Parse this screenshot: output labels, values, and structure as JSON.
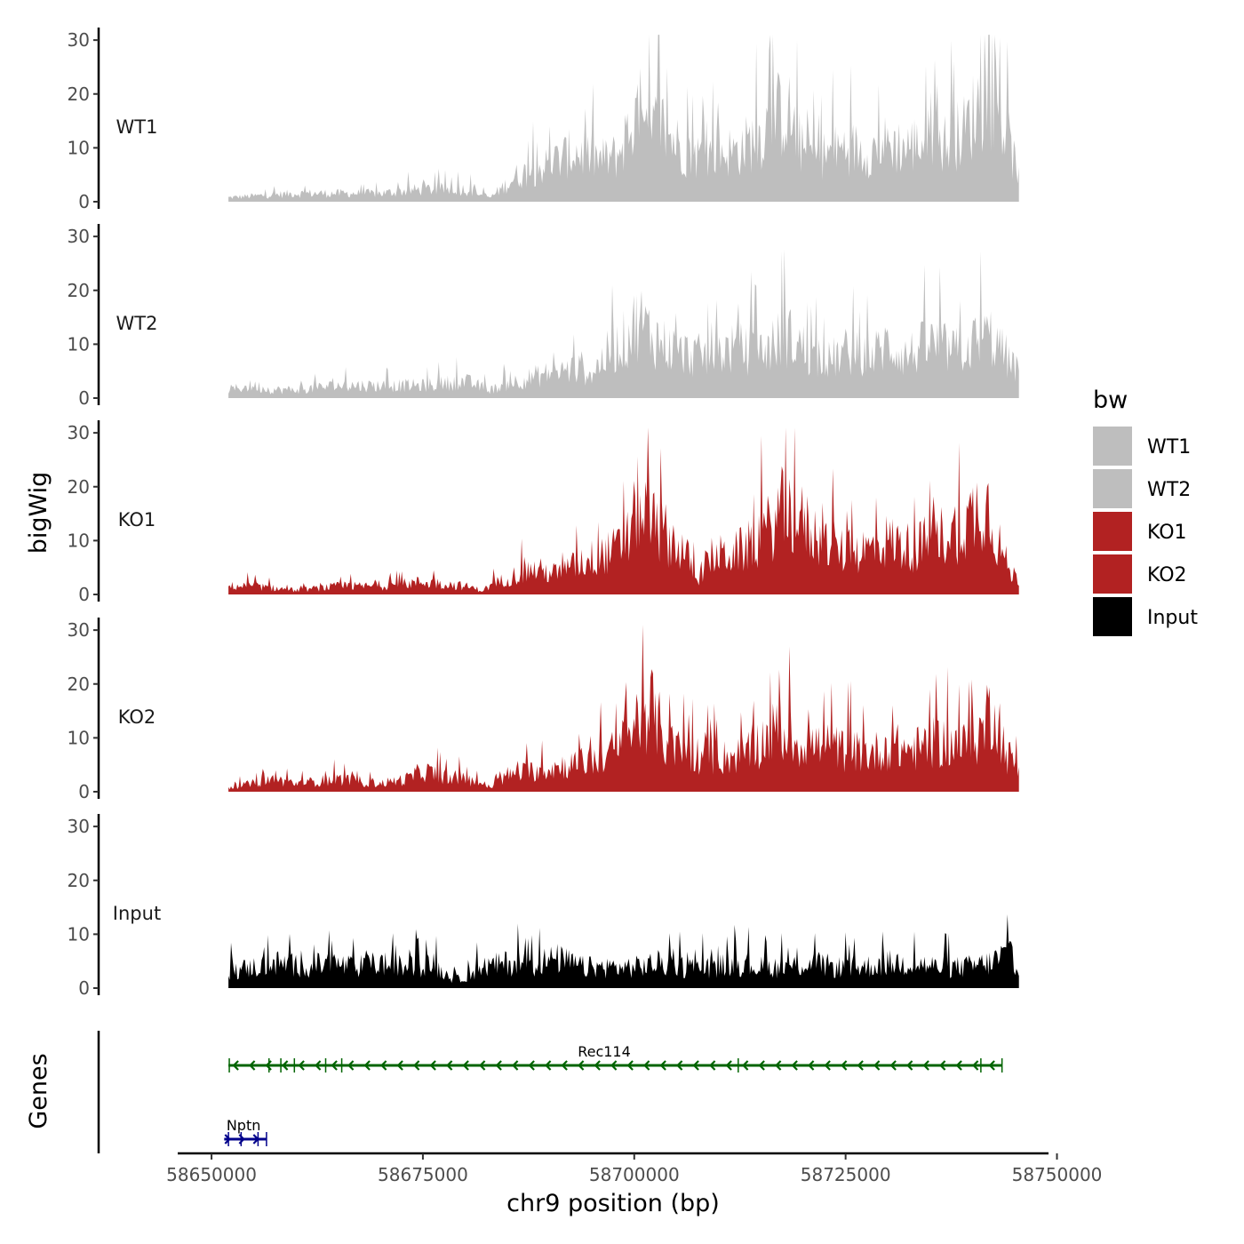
{
  "chart_data": {
    "type": "area",
    "chromosome": "chr9",
    "xlabel": "chr9 position (bp)",
    "ylabel": "bigWig",
    "genes_label": "Genes",
    "xlim": [
      58646000,
      58749000
    ],
    "data_range": [
      58652000,
      58745500
    ],
    "x_ticks": [
      58650000,
      58675000,
      58700000,
      58725000,
      58750000
    ],
    "x_tick_labels": [
      "58650000",
      "58675000",
      "58700000",
      "58725000",
      "58750000"
    ],
    "y_ticks": [
      0,
      10,
      20,
      30
    ],
    "y_tick_labels": [
      "0",
      "10",
      "20",
      "30"
    ],
    "ylim": [
      0,
      32
    ],
    "legend": {
      "title": "bw",
      "entries": [
        {
          "label": "WT1",
          "color": "#bebebe"
        },
        {
          "label": "WT2",
          "color": "#bebebe"
        },
        {
          "label": "KO1",
          "color": "#b22222"
        },
        {
          "label": "KO2",
          "color": "#b22222"
        },
        {
          "label": "Input",
          "color": "#000000"
        }
      ]
    },
    "series": [
      {
        "name": "WT1",
        "color": "#bebebe",
        "x": [
          58652000,
          58660000,
          58665000,
          58670000,
          58675000,
          58680000,
          58683000,
          58686000,
          58690000,
          58693000,
          58696000,
          58698000,
          58700000,
          58701500,
          58703000,
          58705000,
          58707000,
          58710000,
          58712000,
          58715000,
          58716500,
          58718000,
          58720000,
          58722000,
          58725000,
          58728000,
          58730000,
          58732000,
          58735000,
          58737000,
          58739000,
          58741000,
          58742500,
          58744000,
          58745500
        ],
        "values": [
          1,
          2,
          2,
          2,
          3,
          3,
          1,
          6,
          9,
          12,
          10,
          11,
          20,
          15,
          19,
          14,
          11,
          12,
          12,
          16,
          20,
          22,
          12,
          11,
          13,
          12,
          14,
          13,
          15,
          14,
          17,
          24,
          26,
          16,
          6
        ]
      },
      {
        "name": "WT2",
        "color": "#bebebe",
        "x": [
          58652000,
          58655000,
          58657000,
          58660000,
          58665000,
          58670000,
          58675000,
          58680000,
          58683000,
          58686000,
          58690000,
          58693000,
          58695000,
          58697000,
          58699000,
          58700500,
          58702000,
          58705000,
          58708000,
          58712000,
          58715000,
          58718000,
          58720000,
          58722000,
          58725000,
          58728000,
          58730000,
          58732000,
          58735000,
          58738000,
          58740000,
          58742000,
          58744000,
          58745500
        ],
        "values": [
          2,
          3,
          2,
          2,
          3,
          3,
          3,
          4,
          2,
          4,
          6,
          7,
          6,
          11,
          14,
          19,
          15,
          11,
          10,
          12,
          11,
          15,
          12,
          8,
          11,
          10,
          13,
          10,
          13,
          11,
          13,
          15,
          10,
          6
        ]
      },
      {
        "name": "KO1",
        "color": "#b22222",
        "x": [
          58652000,
          58655000,
          58660000,
          58665000,
          58670000,
          58675000,
          58680000,
          58682000,
          58685000,
          58688000,
          58691000,
          58694000,
          58697000,
          58699000,
          58700500,
          58702000,
          58704000,
          58706000,
          58707500,
          58709000,
          58712000,
          58714000,
          58716000,
          58717500,
          58719000,
          58722000,
          58725000,
          58728000,
          58730000,
          58733000,
          58736000,
          58739000,
          58741000,
          58742000,
          58743000,
          58744500,
          58745500
        ],
        "values": [
          2,
          2,
          1,
          2,
          2,
          3,
          2,
          1,
          4,
          6,
          5,
          8,
          10,
          12,
          22,
          17,
          14,
          10,
          4,
          9,
          10,
          12,
          16,
          20,
          19,
          13,
          10,
          11,
          13,
          11,
          14,
          16,
          22,
          21,
          13,
          5,
          4
        ]
      },
      {
        "name": "KO2",
        "color": "#b22222",
        "x": [
          58652000,
          58655000,
          58657000,
          58660000,
          58665000,
          58670000,
          58673000,
          58675000,
          58677000,
          58680000,
          58682000,
          58683000,
          58685000,
          58688000,
          58691000,
          58694000,
          58697000,
          58699000,
          58700500,
          58702000,
          58704000,
          58707000,
          58710000,
          58713000,
          58715000,
          58717000,
          58719000,
          58722000,
          58725000,
          58728000,
          58730000,
          58733000,
          58736000,
          58739000,
          58741000,
          58742500,
          58744000,
          58745500
        ],
        "values": [
          1,
          2,
          3,
          2,
          3,
          2,
          3,
          5,
          4,
          3,
          2,
          1,
          4,
          5,
          6,
          7,
          9,
          12,
          18,
          20,
          11,
          9,
          8,
          9,
          12,
          15,
          12,
          11,
          10,
          9,
          11,
          10,
          12,
          11,
          14,
          22,
          9,
          6
        ]
      },
      {
        "name": "Input",
        "color": "#000000",
        "x": [
          58652000,
          58655000,
          58658000,
          58661000,
          58664000,
          58667000,
          58670000,
          58673000,
          58676000,
          58678000,
          58679000,
          58682000,
          58685000,
          58688000,
          58691000,
          58694000,
          58697000,
          58700000,
          58703000,
          58706000,
          58709000,
          58712000,
          58715000,
          58718000,
          58721000,
          58724000,
          58727000,
          58730000,
          58733000,
          58736000,
          58739000,
          58742000,
          58744000,
          58745500
        ],
        "values": [
          4,
          5,
          6,
          5,
          6,
          5,
          6,
          5,
          6,
          3,
          2,
          5,
          6,
          6,
          7,
          5,
          5,
          5,
          6,
          5,
          5,
          6,
          5,
          5,
          6,
          5,
          5,
          6,
          6,
          5,
          5,
          6,
          8,
          6
        ]
      }
    ],
    "genes": [
      {
        "name": "Rec114",
        "start": 58652000,
        "end": 58743500,
        "strand": "-",
        "color": "#006400",
        "exons": [
          58652100,
          58656800,
          58658200,
          58659800,
          58663500,
          58665400,
          58712300,
          58741000,
          58743500
        ]
      },
      {
        "name": "Nptn",
        "start": 58651500,
        "end": 58656500,
        "strand": "+",
        "color": "#00008b",
        "exons": [
          58652000,
          58653500,
          58655500,
          58656500
        ]
      }
    ]
  }
}
